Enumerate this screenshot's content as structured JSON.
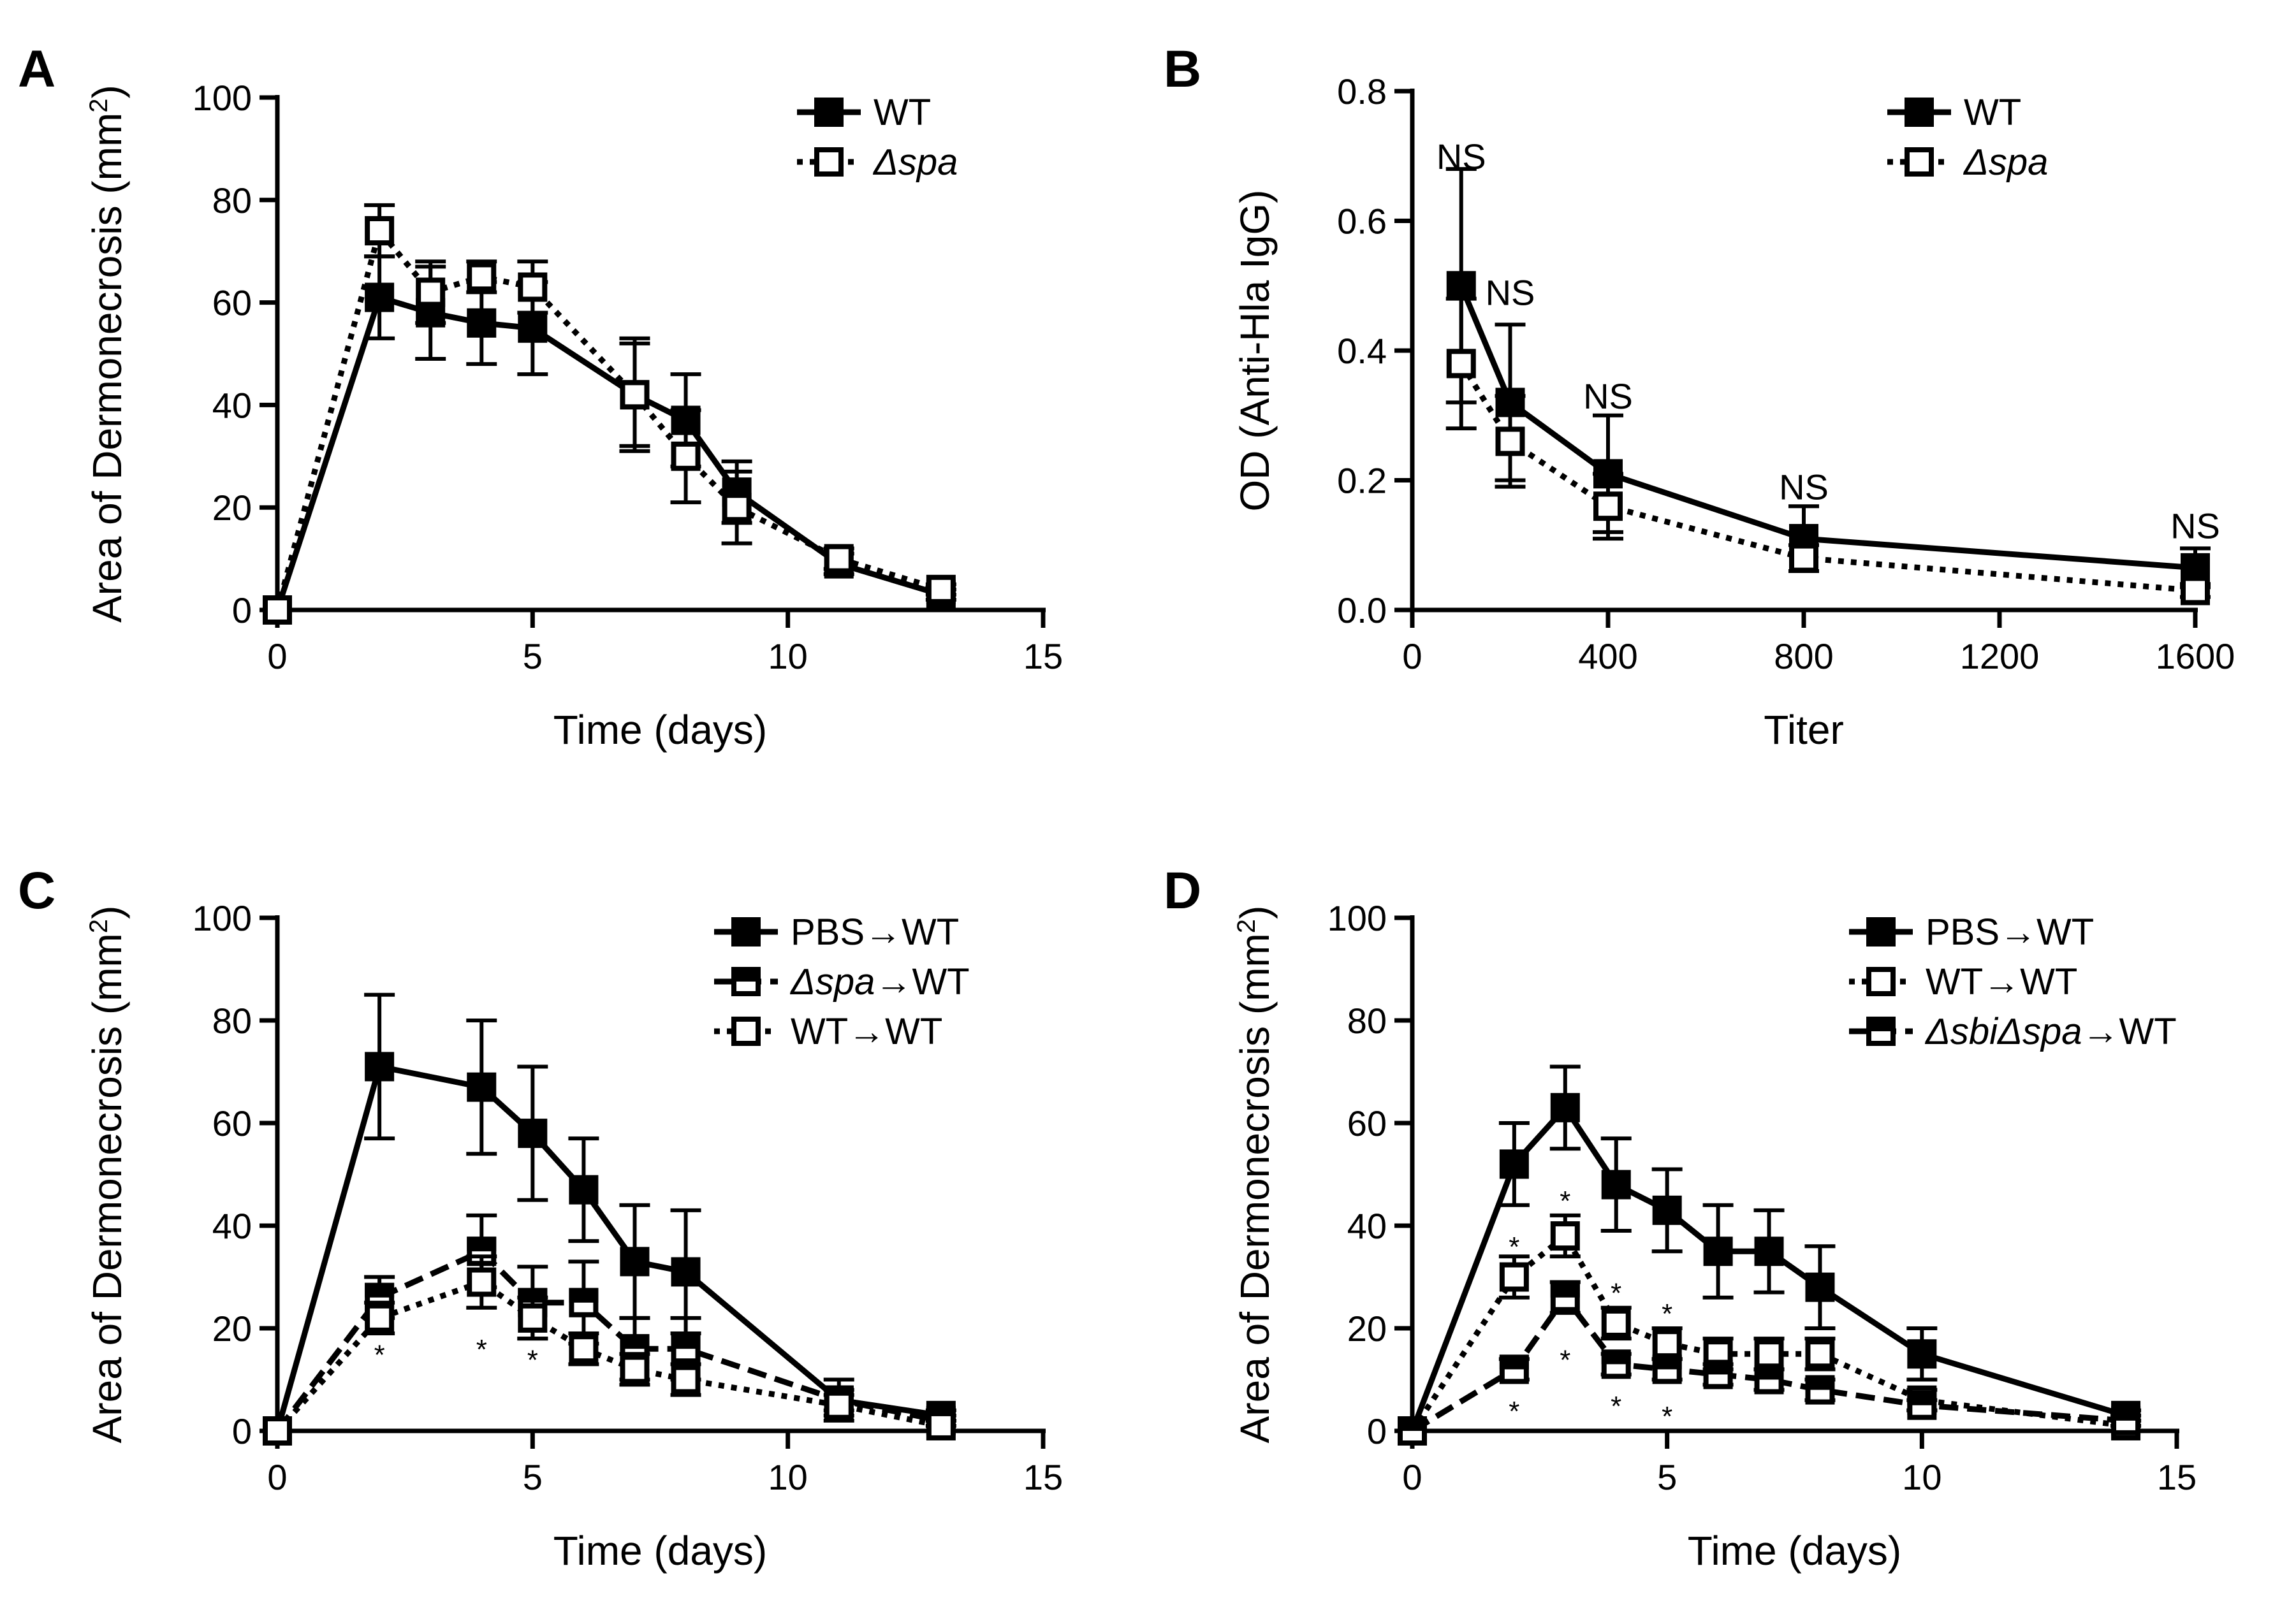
{
  "figure": {
    "panels": [
      {
        "letter": "A",
        "chart_data": {
          "type": "line",
          "xlabel": "Time (days)",
          "ylabel": "Area of Dermonecrosis (mm",
          "ylabel_sup": "2",
          "ylabel_close": ")",
          "xlim": [
            0,
            15
          ],
          "ylim": [
            0,
            100
          ],
          "xticks": [
            0,
            5,
            10,
            15
          ],
          "yticks": [
            0,
            20,
            40,
            60,
            80,
            100
          ],
          "xtick_labels": [
            "0",
            "5",
            "10",
            "15"
          ],
          "ytick_labels": [
            "0",
            "20",
            "40",
            "60",
            "80",
            "100"
          ],
          "legend_position": "top-right",
          "series": [
            {
              "name": "WT",
              "italic": false,
              "marker": "filled-square",
              "line": "solid",
              "x": [
                0,
                2,
                3,
                4,
                5,
                7,
                8,
                9,
                11,
                13
              ],
              "y": [
                0,
                61,
                58,
                56,
                55,
                42,
                37,
                23,
                9,
                3
              ],
              "err": [
                0,
                8,
                9,
                8,
                9,
                11,
                9,
                6,
                2,
                1
              ]
            },
            {
              "name": "Δspa",
              "italic": true,
              "marker": "open-square",
              "line": "dotted",
              "x": [
                0,
                2,
                3,
                4,
                5,
                7,
                8,
                9,
                11,
                13
              ],
              "y": [
                0,
                74,
                62,
                65,
                63,
                42,
                30,
                20,
                10,
                4
              ],
              "err": [
                0,
                5,
                6,
                3,
                5,
                10,
                9,
                7,
                2,
                1
              ]
            }
          ],
          "annotations": []
        }
      },
      {
        "letter": "B",
        "chart_data": {
          "type": "line",
          "xlabel": "Titer",
          "ylabel": "OD (Anti-Hla IgG)",
          "ylabel_sup": "",
          "ylabel_close": "",
          "xlim": [
            0,
            1600
          ],
          "ylim": [
            0,
            0.8
          ],
          "xticks": [
            0,
            400,
            800,
            1200,
            1600
          ],
          "yticks": [
            0,
            0.2,
            0.4,
            0.6,
            0.8
          ],
          "xtick_labels": [
            "0",
            "400",
            "800",
            "1200",
            "1600"
          ],
          "ytick_labels": [
            "0.0",
            "0.2",
            "0.4",
            "0.6",
            "0.8"
          ],
          "legend_position": "top-right",
          "series": [
            {
              "name": "WT",
              "italic": false,
              "marker": "filled-square",
              "line": "solid",
              "x": [
                100,
                200,
                400,
                800,
                1600
              ],
              "y": [
                0.5,
                0.32,
                0.21,
                0.11,
                0.065
              ],
              "err": [
                0.18,
                0.12,
                0.09,
                0.05,
                0.03
              ]
            },
            {
              "name": "Δspa",
              "italic": true,
              "marker": "open-square",
              "line": "dotted",
              "x": [
                100,
                200,
                400,
                800,
                1600
              ],
              "y": [
                0.38,
                0.26,
                0.16,
                0.08,
                0.03
              ],
              "err": [
                0.1,
                0.07,
                0.05,
                0.02,
                0.01
              ]
            }
          ],
          "annotations": [
            {
              "text": "NS",
              "x": 100,
              "y": 0.7
            },
            {
              "text": "NS",
              "x": 200,
              "y": 0.49
            },
            {
              "text": "NS",
              "x": 400,
              "y": 0.33
            },
            {
              "text": "NS",
              "x": 800,
              "y": 0.19
            },
            {
              "text": "NS",
              "x": 1600,
              "y": 0.13
            }
          ]
        }
      },
      {
        "letter": "C",
        "chart_data": {
          "type": "line",
          "xlabel": "Time (days)",
          "ylabel": "Area of Dermonecrosis (mm",
          "ylabel_sup": "2",
          "ylabel_close": ")",
          "xlim": [
            0,
            15
          ],
          "ylim": [
            0,
            100
          ],
          "xticks": [
            0,
            5,
            10,
            15
          ],
          "yticks": [
            0,
            20,
            40,
            60,
            80,
            100
          ],
          "xtick_labels": [
            "0",
            "5",
            "10",
            "15"
          ],
          "ytick_labels": [
            "0",
            "20",
            "40",
            "60",
            "80",
            "100"
          ],
          "legend_position": "top-right",
          "series": [
            {
              "name": "PBS→WT",
              "italic": false,
              "marker": "filled-square",
              "line": "solid",
              "x": [
                0,
                2,
                4,
                5,
                6,
                7,
                8,
                11,
                13
              ],
              "y": [
                0,
                71,
                67,
                58,
                47,
                33,
                31,
                6,
                3
              ],
              "err": [
                0,
                14,
                13,
                13,
                10,
                11,
                12,
                4,
                1
              ]
            },
            {
              "name": "Δspa→WT",
              "italic": true,
              "marker": "half-square",
              "line": "dashed",
              "x": [
                0,
                2,
                4,
                5,
                6,
                7,
                8,
                11,
                13
              ],
              "y": [
                0,
                26,
                35,
                25,
                25,
                16,
                16,
                6,
                2
              ],
              "err": [
                0,
                4,
                7,
                7,
                8,
                6,
                6,
                2,
                1
              ]
            },
            {
              "name": "WT→WT",
              "italic": false,
              "marker": "open-square",
              "line": "dotted",
              "x": [
                0,
                2,
                4,
                5,
                6,
                7,
                8,
                11,
                13
              ],
              "y": [
                0,
                22,
                29,
                22,
                16,
                12,
                10,
                5,
                1
              ],
              "err": [
                0,
                3,
                5,
                4,
                3,
                3,
                3,
                2,
                1
              ]
            }
          ],
          "annotations": [
            {
              "text": "*",
              "x": 2,
              "y": 15
            },
            {
              "text": "*",
              "x": 4,
              "y": 16
            },
            {
              "text": "*",
              "x": 5,
              "y": 14
            }
          ]
        }
      },
      {
        "letter": "D",
        "chart_data": {
          "type": "line",
          "xlabel": "Time (days)",
          "ylabel": "Area of Dermonecrosis (mm",
          "ylabel_sup": "2",
          "ylabel_close": ")",
          "xlim": [
            0,
            15
          ],
          "ylim": [
            0,
            100
          ],
          "xticks": [
            0,
            5,
            10,
            15
          ],
          "yticks": [
            0,
            20,
            40,
            60,
            80,
            100
          ],
          "xtick_labels": [
            "0",
            "5",
            "10",
            "15"
          ],
          "ytick_labels": [
            "0",
            "20",
            "40",
            "60",
            "80",
            "100"
          ],
          "legend_position": "top-right",
          "series": [
            {
              "name": "PBS→WT",
              "italic": false,
              "marker": "filled-square",
              "line": "solid",
              "x": [
                0,
                2,
                3,
                4,
                5,
                6,
                7,
                8,
                10,
                14
              ],
              "y": [
                0,
                52,
                63,
                48,
                43,
                35,
                35,
                28,
                15,
                3
              ],
              "err": [
                0,
                8,
                8,
                9,
                8,
                9,
                8,
                8,
                5,
                1
              ]
            },
            {
              "name": "WT→WT",
              "italic": false,
              "marker": "open-square",
              "line": "dotted",
              "x": [
                0,
                2,
                3,
                4,
                5,
                6,
                7,
                8,
                10,
                14
              ],
              "y": [
                0,
                30,
                38,
                21,
                17,
                15,
                15,
                15,
                6,
                1
              ],
              "err": [
                0,
                4,
                4,
                3,
                3,
                3,
                3,
                3,
                2,
                1
              ]
            },
            {
              "name": "ΔsbiΔspa→WT",
              "italic": true,
              "marker": "half-square",
              "line": "dashed",
              "x": [
                0,
                2,
                3,
                4,
                5,
                6,
                7,
                8,
                10,
                14
              ],
              "y": [
                0,
                12,
                26,
                13,
                12,
                11,
                10,
                8,
                5,
                2
              ],
              "err": [
                0,
                2,
                3,
                2,
                2,
                2,
                2,
                2,
                1,
                1
              ]
            }
          ],
          "annotations": [
            {
              "text": "*",
              "x": 2,
              "y": 36
            },
            {
              "text": "*",
              "x": 3,
              "y": 45
            },
            {
              "text": "*",
              "x": 4,
              "y": 27
            },
            {
              "text": "*",
              "x": 5,
              "y": 23
            },
            {
              "text": "*",
              "x": 2,
              "y": 4
            },
            {
              "text": "*",
              "x": 3,
              "y": 14
            },
            {
              "text": "*",
              "x": 4,
              "y": 5
            },
            {
              "text": "*",
              "x": 5,
              "y": 3
            }
          ]
        }
      }
    ]
  }
}
